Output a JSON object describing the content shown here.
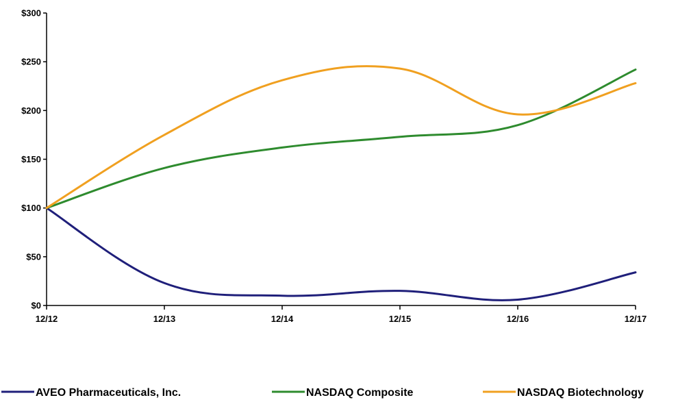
{
  "chart_data": {
    "type": "line",
    "title": "",
    "xlabel": "",
    "ylabel": "",
    "categories": [
      "12/12",
      "12/13",
      "12/14",
      "12/15",
      "12/16",
      "12/17"
    ],
    "ylim": [
      0,
      300
    ],
    "yticks": [
      0,
      50,
      100,
      150,
      200,
      250,
      300
    ],
    "ytick_labels": [
      "$0",
      "$50",
      "$100",
      "$150",
      "$200",
      "$250",
      "$300"
    ],
    "grid": false,
    "legend_position": "bottom",
    "series": [
      {
        "name": "AVEO Pharmaceuticals, Inc.",
        "color": "#1f1f7a",
        "values": [
          100,
          23,
          10,
          15,
          6,
          34
        ]
      },
      {
        "name": "NASDAQ Composite",
        "color": "#2e8b2e",
        "values": [
          100,
          141,
          162,
          173,
          185,
          242
        ]
      },
      {
        "name": "NASDAQ Biotechnology",
        "color": "#f0a020",
        "values": [
          100,
          175,
          231,
          243,
          196,
          228
        ]
      }
    ]
  }
}
